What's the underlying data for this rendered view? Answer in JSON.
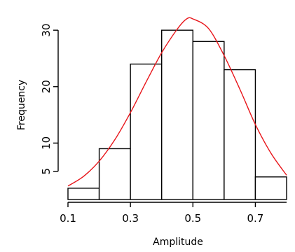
{
  "chart_data": {
    "type": "bar",
    "title": "",
    "xlabel": "Amplitude",
    "ylabel": "Frequency",
    "bins": [
      {
        "x0": 0.1,
        "x1": 0.2,
        "value": 2
      },
      {
        "x0": 0.2,
        "x1": 0.3,
        "value": 9
      },
      {
        "x0": 0.3,
        "x1": 0.4,
        "value": 24
      },
      {
        "x0": 0.4,
        "x1": 0.5,
        "value": 30
      },
      {
        "x0": 0.5,
        "x1": 0.6,
        "value": 28
      },
      {
        "x0": 0.6,
        "x1": 0.7,
        "value": 23
      },
      {
        "x0": 0.7,
        "x1": 0.8,
        "value": 4
      }
    ],
    "xlim": [
      0.1,
      0.8
    ],
    "ylim": [
      0,
      32.5
    ],
    "xticks": [
      0.1,
      0.3,
      0.5,
      0.7
    ],
    "xtick_labels": [
      "0.1",
      "0.3",
      "0.5",
      "0.7"
    ],
    "yticks": [
      5,
      10,
      20,
      30
    ],
    "ytick_labels": [
      "5",
      "10",
      "20",
      "30"
    ],
    "fit_curve": {
      "type": "normal-density",
      "color": "#e8161b",
      "points": [
        [
          0.1,
          2.4
        ],
        [
          0.15,
          4.1
        ],
        [
          0.2,
          6.8
        ],
        [
          0.25,
          10.6
        ],
        [
          0.3,
          15.4
        ],
        [
          0.35,
          20.8
        ],
        [
          0.4,
          26.0
        ],
        [
          0.45,
          30.2
        ],
        [
          0.48,
          32.0
        ],
        [
          0.5,
          32.0
        ],
        [
          0.55,
          30.3
        ],
        [
          0.6,
          25.5
        ],
        [
          0.65,
          19.6
        ],
        [
          0.7,
          13.3
        ],
        [
          0.75,
          8.2
        ],
        [
          0.8,
          4.3
        ]
      ]
    },
    "bar_fill": "#ffffff",
    "bar_stroke": "#000000",
    "grid": false,
    "legend": "none"
  }
}
